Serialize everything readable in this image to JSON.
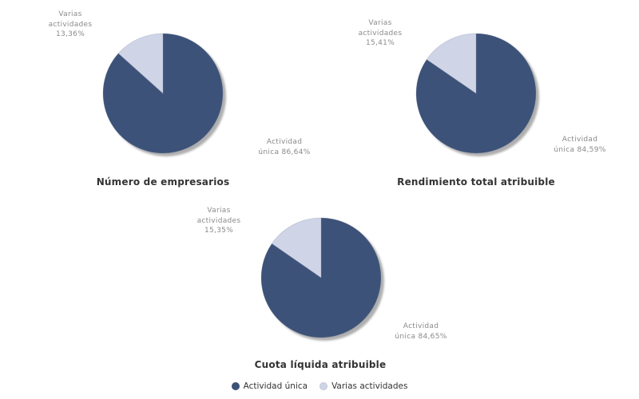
{
  "colors": {
    "actividad_unica": "#3d5278",
    "varias_actividades": "#cfd4e7",
    "shadow": "#9b9b9b",
    "callout_text": "#8a8a8a",
    "title_text": "#333333",
    "legend_text": "#333333",
    "background": "#ffffff"
  },
  "legend": {
    "position": "bottom",
    "items": [
      {
        "label": "Actividad única",
        "color_key": "actividad_unica"
      },
      {
        "label": "Varias actividades",
        "color_key": "varias_actividades"
      }
    ]
  },
  "chart_data": [
    {
      "type": "pie",
      "title": "Número de empresarios",
      "start_angle_deg": 0,
      "direction": "clockwise",
      "slices": [
        {
          "name": "Actividad única",
          "value": 86.64,
          "color_key": "actividad_unica",
          "callout": "Actividad\núnica 86,64%"
        },
        {
          "name": "Varias actividades",
          "value": 13.36,
          "color_key": "varias_actividades",
          "callout": "Varias\nactividades\n13,36%"
        }
      ]
    },
    {
      "type": "pie",
      "title": "Rendimiento total atribuible",
      "start_angle_deg": 0,
      "direction": "clockwise",
      "slices": [
        {
          "name": "Actividad única",
          "value": 84.59,
          "color_key": "actividad_unica",
          "callout": "Actividad\núnica 84,59%"
        },
        {
          "name": "Varias actividades",
          "value": 15.41,
          "color_key": "varias_actividades",
          "callout": "Varias\nactividades\n15,41%"
        }
      ]
    },
    {
      "type": "pie",
      "title": "Cuota líquida atribuible",
      "start_angle_deg": 0,
      "direction": "clockwise",
      "slices": [
        {
          "name": "Actividad única",
          "value": 84.65,
          "color_key": "actividad_unica",
          "callout": "Actividad\núnica 84,65%"
        },
        {
          "name": "Varias actividades",
          "value": 15.35,
          "color_key": "varias_actividades",
          "callout": "Varias\nactividades\n15,35%"
        }
      ]
    }
  ]
}
